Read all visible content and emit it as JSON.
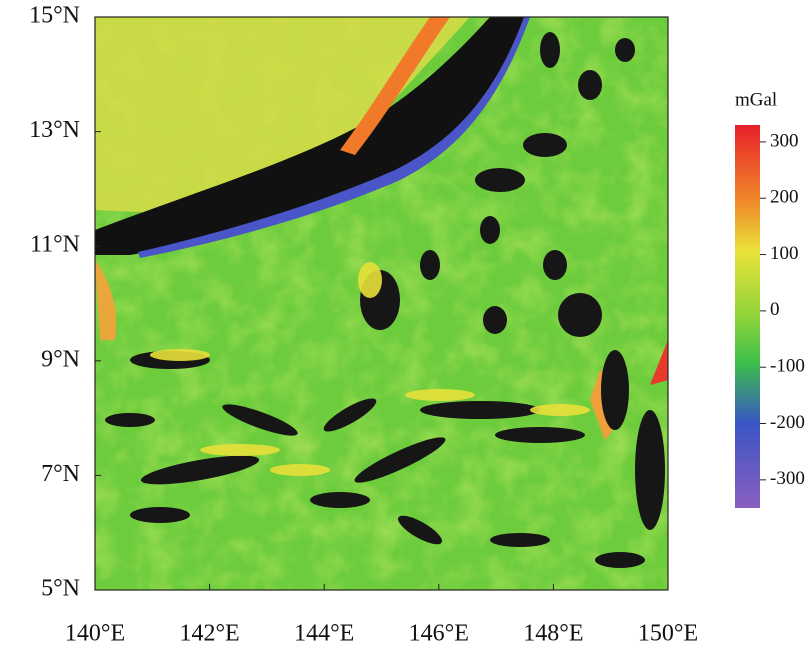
{
  "map": {
    "lonlim": [
      140,
      150
    ],
    "latlim": [
      5,
      15
    ],
    "lon_ticks": [
      {
        "value": 140,
        "label": "140°E"
      },
      {
        "value": 142,
        "label": "142°E"
      },
      {
        "value": 144,
        "label": "144°E"
      },
      {
        "value": 146,
        "label": "146°E"
      },
      {
        "value": 148,
        "label": "148°E"
      },
      {
        "value": 150,
        "label": "150°E"
      }
    ],
    "lat_ticks": [
      {
        "value": 5,
        "label": "5°N"
      },
      {
        "value": 7,
        "label": "7°N"
      },
      {
        "value": 9,
        "label": "9°N"
      },
      {
        "value": 11,
        "label": "11°N"
      },
      {
        "value": 13,
        "label": "13°N"
      },
      {
        "value": 15,
        "label": "15°N"
      }
    ]
  },
  "colorbar": {
    "unit": "mGal",
    "range": [
      -350,
      330
    ],
    "ticks": [
      300,
      200,
      100,
      0,
      -100,
      -200,
      -300
    ]
  }
}
